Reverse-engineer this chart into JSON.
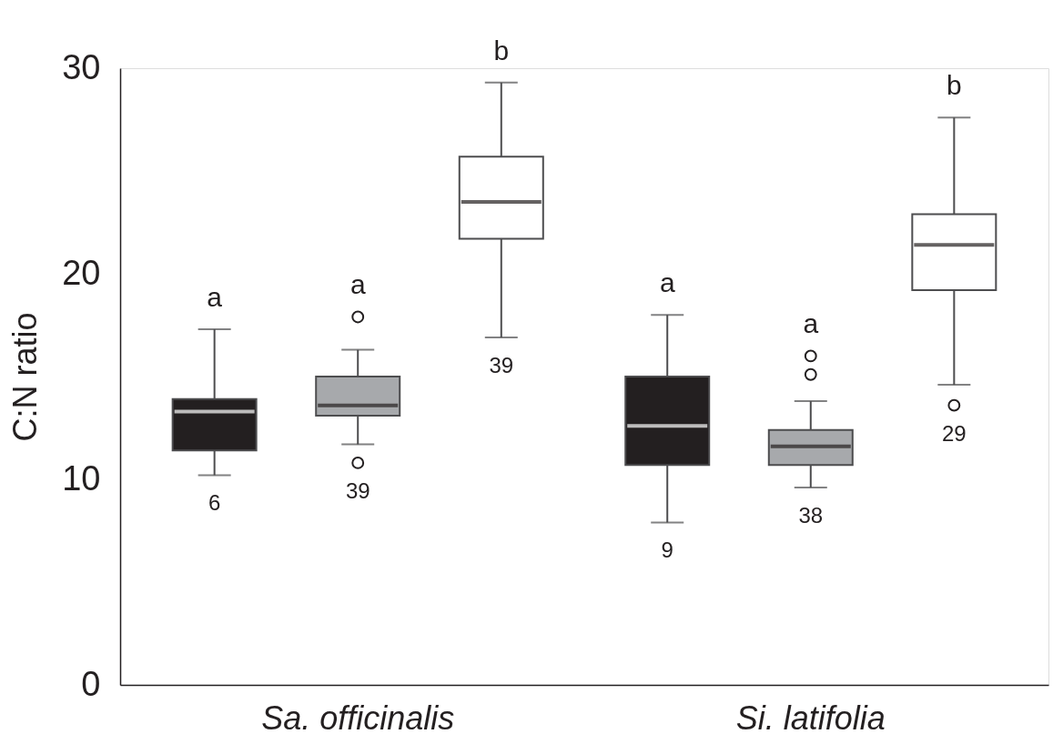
{
  "chart_data": {
    "type": "box",
    "ylabel": "C:N ratio",
    "categories": [
      "Sa. officinalis",
      "Si. latifolia"
    ],
    "ylim": [
      0,
      30
    ],
    "yticks": [
      0,
      10,
      20,
      30
    ],
    "grid": false,
    "legend": false,
    "series": [
      {
        "color": "#231f20",
        "boxes": [
          {
            "low": 10.2,
            "q1": 11.4,
            "median": 13.3,
            "q3": 13.9,
            "high": 17.3
          },
          {
            "low": 7.9,
            "q1": 10.7,
            "median": 12.6,
            "q3": 15.0,
            "high": 18.0
          }
        ]
      },
      {
        "color": "#a7a9ac",
        "boxes": [
          {
            "low": 11.7,
            "q1": 13.1,
            "median": 13.6,
            "q3": 15.0,
            "high": 16.3,
            "outliers": [
              17.9,
              10.8
            ]
          },
          {
            "low": 9.6,
            "q1": 10.7,
            "median": 11.6,
            "q3": 12.4,
            "high": 13.8,
            "outliers": [
              16.0,
              15.1
            ]
          }
        ]
      },
      {
        "color": "#ffffff",
        "boxes": [
          {
            "low": 16.9,
            "q1": 21.7,
            "median": 23.5,
            "q3": 25.7,
            "high": 29.3
          },
          {
            "low": 14.6,
            "q1": 19.2,
            "median": 21.4,
            "q3": 22.9,
            "high": 27.6,
            "outliers": [
              13.6
            ]
          }
        ]
      }
    ],
    "annotations": [
      "a",
      "6",
      "a",
      "39",
      "b",
      "39",
      "a",
      "9",
      "a",
      "38",
      "b",
      "29"
    ]
  }
}
